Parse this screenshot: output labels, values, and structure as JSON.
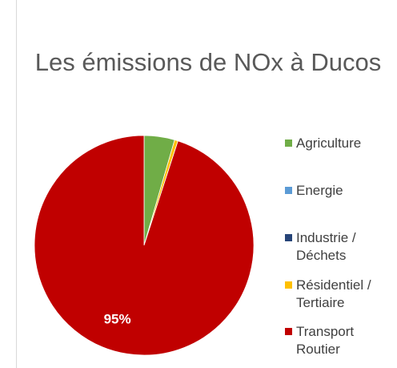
{
  "chart_data": {
    "type": "pie",
    "title": "Les émissions de NOx à Ducos",
    "categories": [
      "Agriculture",
      "Energie",
      "Industrie / Déchets",
      "Résidentiel / Tertiaire",
      "Transport Routier"
    ],
    "values": [
      4.5,
      0,
      0,
      0.5,
      95
    ],
    "value_labels": [
      null,
      null,
      null,
      null,
      "95%"
    ],
    "colors": [
      "#70ad47",
      "#5b9bd5",
      "#264478",
      "#ffc000",
      "#c00000"
    ],
    "legend": "right"
  }
}
